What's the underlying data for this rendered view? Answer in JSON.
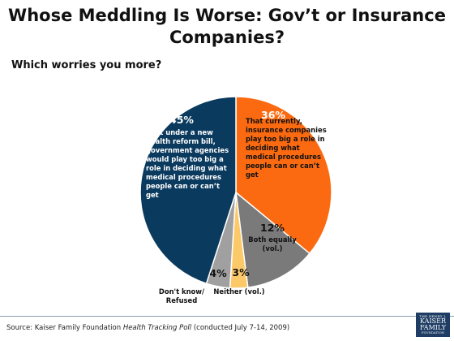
{
  "title_line1": "Whose Meddling Is Worse: Gov’t or Insurance",
  "title_line2": "Companies?",
  "subtitle": "Which worries you more?",
  "source": {
    "prefix": "Source: Kaiser Family Foundation ",
    "italic": "Health Tracking Poll",
    "suffix": " (conducted July 7-14, 2009)"
  },
  "logo": {
    "line1": "THE HENRY J.",
    "line2": "KAISER",
    "line3": "FAMILY",
    "line4": "FOUNDATION"
  },
  "chart_data": {
    "type": "pie",
    "title": "Whose Meddling Is Worse: Gov’t or Insurance Companies?",
    "subtitle": "Which worries you more?",
    "slices": [
      {
        "pct_label": "36%",
        "value": 36,
        "color": "#fb6a10",
        "lines": [
          "That currently,",
          "insurance companies",
          "play too big a role in",
          "deciding what",
          "medical procedures",
          "people can or can’t",
          "get"
        ]
      },
      {
        "pct_label": "12%",
        "value": 12,
        "color": "#7a7a7a",
        "lines": [
          "Both equally",
          "(vol.)"
        ]
      },
      {
        "pct_label": "3%",
        "value": 3,
        "color": "#fcc969",
        "lines": [
          "Neither (vol.)"
        ]
      },
      {
        "pct_label": "4%",
        "value": 4,
        "color": "#a0a0a0",
        "lines": [
          "Don't know/",
          "Refused"
        ]
      },
      {
        "pct_label": "45%",
        "value": 45,
        "color": "#0a3a5e",
        "lines": [
          "That under a new",
          "health reform bill,",
          "government agencies",
          "would play too big a",
          "role in deciding what",
          "medical procedures",
          "people can or can’t",
          "get"
        ]
      }
    ]
  }
}
